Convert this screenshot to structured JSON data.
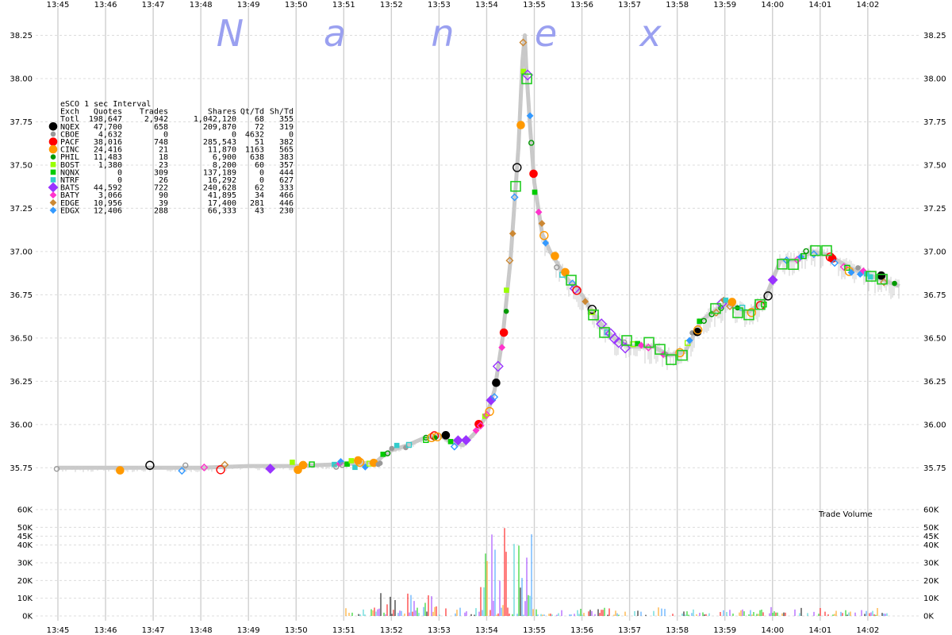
{
  "brand_letters": [
    "N",
    "a",
    "n",
    "e",
    "x"
  ],
  "chart_data": {
    "type": "scatter",
    "title": "",
    "xlabel": "",
    "ylabel": "",
    "time_axis": [
      "13:45",
      "13:46",
      "13:47",
      "13:48",
      "13:49",
      "13:50",
      "13:51",
      "13:52",
      "13:53",
      "13:54",
      "13:55",
      "13:56",
      "13:57",
      "13:58",
      "13:59",
      "14:00",
      "14:01",
      "14:02"
    ],
    "price_axis": {
      "ylim": [
        35.5,
        38.3
      ],
      "ticks": [
        "38.25",
        "38.00",
        "37.75",
        "37.50",
        "37.25",
        "37.00",
        "36.75",
        "36.50",
        "36.25",
        "36.00",
        "35.75"
      ]
    },
    "volume_axis": {
      "label": "Trade Volume",
      "ylim": [
        0,
        60000
      ],
      "ticks": [
        "60K",
        "50K",
        "45K",
        "40K",
        "30K",
        "20K",
        "10K",
        "0K"
      ]
    },
    "grid": true,
    "legend_placement": "top-left",
    "legend": {
      "title": "eSCO 1 sec Interval",
      "columns": [
        "Exch",
        "Quotes",
        "Trades",
        "Shares",
        "Qt/Td",
        "Sh/Td"
      ],
      "total": {
        "exch": "Totl",
        "quotes": "198,647",
        "trades": "2,942",
        "shares": "1,042,120",
        "qt_td": "68",
        "sh_td": "355"
      },
      "rows": [
        {
          "exch": "NQEX",
          "quotes": "47,700",
          "trades": "658",
          "shares": "209,870",
          "qt_td": "72",
          "sh_td": "319",
          "color": "#000000",
          "marker": "circle-lg"
        },
        {
          "exch": "CBOE",
          "quotes": "4,632",
          "trades": "0",
          "shares": "0",
          "qt_td": "4632",
          "sh_td": "0",
          "color": "#999999",
          "marker": "circle-sm"
        },
        {
          "exch": "PACF",
          "quotes": "38,016",
          "trades": "748",
          "shares": "285,543",
          "qt_td": "51",
          "sh_td": "382",
          "color": "#ff0000",
          "marker": "circle-lg"
        },
        {
          "exch": "CINC",
          "quotes": "24,416",
          "trades": "21",
          "shares": "11,870",
          "qt_td": "1163",
          "sh_td": "565",
          "color": "#ff9900",
          "marker": "circle-lg"
        },
        {
          "exch": "PHIL",
          "quotes": "11,483",
          "trades": "18",
          "shares": "6,900",
          "qt_td": "638",
          "sh_td": "383",
          "color": "#009900",
          "marker": "circle-sm"
        },
        {
          "exch": "BOST",
          "quotes": "1,380",
          "trades": "23",
          "shares": "8,200",
          "qt_td": "60",
          "sh_td": "357",
          "color": "#99ff00",
          "marker": "square-sm"
        },
        {
          "exch": "NQNX",
          "quotes": "0",
          "trades": "309",
          "shares": "137,189",
          "qt_td": "0",
          "sh_td": "444",
          "color": "#00cc00",
          "marker": "square-sm"
        },
        {
          "exch": "NTRF",
          "quotes": "0",
          "trades": "26",
          "shares": "16,292",
          "qt_td": "0",
          "sh_td": "627",
          "color": "#33cccc",
          "marker": "square-sm"
        },
        {
          "exch": "BATS",
          "quotes": "44,592",
          "trades": "722",
          "shares": "240,628",
          "qt_td": "62",
          "sh_td": "333",
          "color": "#9933ff",
          "marker": "diamond-lg"
        },
        {
          "exch": "BATY",
          "quotes": "3,066",
          "trades": "90",
          "shares": "41,895",
          "qt_td": "34",
          "sh_td": "466",
          "color": "#ff33cc",
          "marker": "diamond-sm"
        },
        {
          "exch": "EDGE",
          "quotes": "10,956",
          "trades": "39",
          "shares": "17,400",
          "qt_td": "281",
          "sh_td": "446",
          "color": "#cc8833",
          "marker": "diamond-sm"
        },
        {
          "exch": "EDGX",
          "quotes": "12,406",
          "trades": "288",
          "shares": "66,333",
          "qt_td": "43",
          "sh_td": "230",
          "color": "#3399ff",
          "marker": "diamond-sm"
        }
      ]
    },
    "price_path": [
      [
        "13:45:00",
        35.75
      ],
      [
        "13:46:00",
        35.75
      ],
      [
        "13:47:00",
        35.75
      ],
      [
        "13:48:00",
        35.75
      ],
      [
        "13:49:00",
        35.76
      ],
      [
        "13:50:00",
        35.76
      ],
      [
        "13:50:55",
        35.77
      ],
      [
        "13:51:40",
        35.78
      ],
      [
        "13:51:50",
        35.82
      ],
      [
        "13:52:00",
        35.85
      ],
      [
        "13:52:20",
        35.88
      ],
      [
        "13:52:40",
        35.92
      ],
      [
        "13:53:00",
        35.94
      ],
      [
        "13:53:15",
        35.9
      ],
      [
        "13:53:30",
        35.88
      ],
      [
        "13:53:45",
        35.95
      ],
      [
        "13:54:00",
        36.05
      ],
      [
        "13:54:10",
        36.2
      ],
      [
        "13:54:20",
        36.5
      ],
      [
        "13:54:30",
        36.95
      ],
      [
        "13:54:40",
        37.6
      ],
      [
        "13:54:45",
        38.1
      ],
      [
        "13:54:48",
        38.25
      ],
      [
        "13:54:50",
        38.05
      ],
      [
        "13:54:55",
        37.7
      ],
      [
        "13:55:00",
        37.4
      ],
      [
        "13:55:10",
        37.1
      ],
      [
        "13:55:20",
        37.0
      ],
      [
        "13:55:40",
        36.85
      ],
      [
        "13:56:00",
        36.75
      ],
      [
        "13:56:20",
        36.6
      ],
      [
        "13:56:40",
        36.5
      ],
      [
        "13:57:00",
        36.45
      ],
      [
        "13:57:30",
        36.45
      ],
      [
        "13:57:50",
        36.4
      ],
      [
        "13:58:10",
        36.42
      ],
      [
        "13:58:30",
        36.6
      ],
      [
        "13:59:00",
        36.7
      ],
      [
        "13:59:30",
        36.65
      ],
      [
        "13:59:50",
        36.72
      ],
      [
        "14:00:10",
        36.95
      ],
      [
        "14:00:30",
        36.95
      ],
      [
        "14:00:50",
        37.0
      ],
      [
        "14:01:10",
        36.98
      ],
      [
        "14:01:40",
        36.9
      ],
      [
        "14:02:10",
        36.85
      ],
      [
        "14:02:40",
        36.8
      ]
    ]
  }
}
